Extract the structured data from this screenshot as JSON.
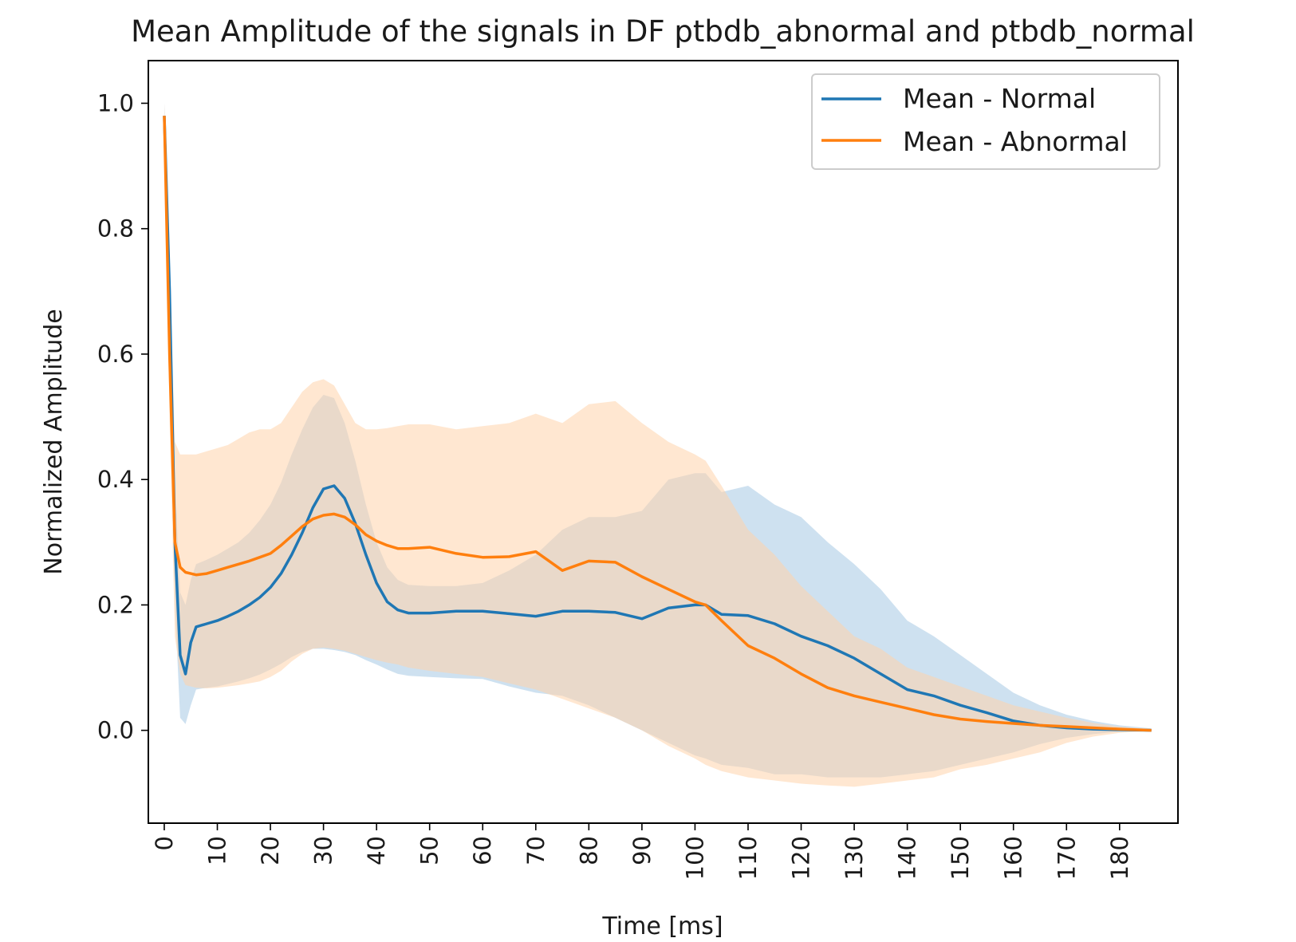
{
  "chart_data": {
    "type": "line",
    "title": "Mean Amplitude of the signals in DF ptbdb_abnormal and ptbdb_normal",
    "xlabel": "Time [ms]",
    "ylabel": "Normalized Amplitude",
    "xlim": [
      -3,
      191
    ],
    "ylim": [
      -0.148,
      1.068
    ],
    "xticks": [
      0,
      10,
      20,
      30,
      40,
      50,
      60,
      70,
      80,
      90,
      100,
      110,
      120,
      130,
      140,
      150,
      160,
      170,
      180
    ],
    "xtick_labels": [
      "0",
      "10",
      "20",
      "30",
      "40",
      "50",
      "60",
      "70",
      "80",
      "90",
      "100",
      "110",
      "120",
      "130",
      "140",
      "150",
      "160",
      "170",
      "180"
    ],
    "yticks": [
      0.0,
      0.2,
      0.4,
      0.6,
      0.8,
      1.0
    ],
    "ytick_labels": [
      "0.0",
      "0.2",
      "0.4",
      "0.6",
      "0.8",
      "1.0"
    ],
    "grid": false,
    "legend_position": "top-right",
    "series": [
      {
        "name": "Mean - Normal",
        "color": "#1f77b4",
        "band_color": "#aecde6",
        "x": [
          0,
          1,
          2,
          3,
          4,
          5,
          6,
          8,
          10,
          12,
          14,
          16,
          18,
          20,
          22,
          24,
          26,
          28,
          30,
          32,
          34,
          36,
          38,
          40,
          42,
          44,
          46,
          50,
          55,
          60,
          65,
          70,
          75,
          80,
          85,
          90,
          95,
          100,
          102,
          105,
          110,
          115,
          120,
          125,
          130,
          135,
          140,
          145,
          150,
          155,
          160,
          165,
          170,
          175,
          180,
          186
        ],
        "y": [
          0.98,
          0.7,
          0.3,
          0.12,
          0.09,
          0.14,
          0.165,
          0.17,
          0.175,
          0.182,
          0.19,
          0.2,
          0.212,
          0.228,
          0.25,
          0.28,
          0.315,
          0.355,
          0.385,
          0.39,
          0.37,
          0.33,
          0.28,
          0.235,
          0.205,
          0.192,
          0.187,
          0.187,
          0.19,
          0.19,
          0.186,
          0.182,
          0.19,
          0.19,
          0.188,
          0.178,
          0.195,
          0.2,
          0.2,
          0.185,
          0.183,
          0.17,
          0.15,
          0.135,
          0.115,
          0.09,
          0.065,
          0.055,
          0.04,
          0.028,
          0.015,
          0.008,
          0.004,
          0.002,
          0.001,
          0.0
        ],
        "lower": [
          0.96,
          0.65,
          0.2,
          0.02,
          0.01,
          0.04,
          0.065,
          0.068,
          0.07,
          0.074,
          0.078,
          0.083,
          0.089,
          0.097,
          0.106,
          0.117,
          0.125,
          0.13,
          0.13,
          0.128,
          0.125,
          0.12,
          0.112,
          0.105,
          0.097,
          0.09,
          0.087,
          0.085,
          0.083,
          0.082,
          0.07,
          0.06,
          0.055,
          0.04,
          0.02,
          0.0,
          -0.02,
          -0.04,
          -0.045,
          -0.055,
          -0.06,
          -0.07,
          -0.07,
          -0.075,
          -0.075,
          -0.075,
          -0.07,
          -0.065,
          -0.055,
          -0.045,
          -0.035,
          -0.022,
          -0.012,
          -0.006,
          -0.002,
          -0.001
        ],
        "upper": [
          1.0,
          0.75,
          0.4,
          0.22,
          0.2,
          0.24,
          0.265,
          0.272,
          0.28,
          0.29,
          0.3,
          0.315,
          0.335,
          0.36,
          0.395,
          0.44,
          0.48,
          0.515,
          0.535,
          0.53,
          0.49,
          0.43,
          0.36,
          0.3,
          0.26,
          0.24,
          0.232,
          0.23,
          0.23,
          0.235,
          0.255,
          0.28,
          0.32,
          0.34,
          0.34,
          0.35,
          0.4,
          0.41,
          0.41,
          0.38,
          0.39,
          0.36,
          0.34,
          0.3,
          0.265,
          0.225,
          0.175,
          0.15,
          0.12,
          0.09,
          0.06,
          0.04,
          0.025,
          0.015,
          0.008,
          0.003
        ]
      },
      {
        "name": "Mean - Abnormal",
        "color": "#ff7f0e",
        "band_color": "#ffd4ac",
        "x": [
          0,
          1,
          2,
          3,
          4,
          5,
          6,
          8,
          10,
          12,
          14,
          16,
          18,
          20,
          22,
          24,
          26,
          28,
          30,
          32,
          34,
          36,
          38,
          40,
          42,
          44,
          46,
          50,
          55,
          60,
          65,
          70,
          75,
          80,
          85,
          90,
          95,
          100,
          102,
          105,
          110,
          115,
          120,
          125,
          130,
          135,
          140,
          145,
          150,
          155,
          160,
          165,
          170,
          175,
          180,
          186
        ],
        "y": [
          0.98,
          0.6,
          0.3,
          0.26,
          0.252,
          0.25,
          0.248,
          0.25,
          0.255,
          0.26,
          0.265,
          0.27,
          0.276,
          0.282,
          0.295,
          0.31,
          0.325,
          0.337,
          0.343,
          0.345,
          0.34,
          0.328,
          0.312,
          0.302,
          0.295,
          0.29,
          0.29,
          0.292,
          0.282,
          0.276,
          0.277,
          0.285,
          0.255,
          0.27,
          0.268,
          0.245,
          0.225,
          0.205,
          0.2,
          0.175,
          0.135,
          0.115,
          0.09,
          0.068,
          0.055,
          0.045,
          0.035,
          0.025,
          0.018,
          0.014,
          0.011,
          0.008,
          0.006,
          0.004,
          0.002,
          0.0
        ],
        "lower": [
          0.96,
          0.5,
          0.15,
          0.09,
          0.072,
          0.07,
          0.068,
          0.067,
          0.068,
          0.07,
          0.072,
          0.075,
          0.078,
          0.085,
          0.095,
          0.11,
          0.122,
          0.13,
          0.132,
          0.13,
          0.127,
          0.122,
          0.117,
          0.112,
          0.108,
          0.105,
          0.1,
          0.095,
          0.09,
          0.085,
          0.075,
          0.065,
          0.05,
          0.035,
          0.02,
          0.0,
          -0.025,
          -0.045,
          -0.055,
          -0.065,
          -0.075,
          -0.08,
          -0.085,
          -0.088,
          -0.09,
          -0.085,
          -0.08,
          -0.075,
          -0.062,
          -0.055,
          -0.045,
          -0.035,
          -0.02,
          -0.01,
          -0.004,
          -0.001
        ],
        "upper": [
          1.0,
          0.72,
          0.46,
          0.44,
          0.44,
          0.44,
          0.44,
          0.445,
          0.45,
          0.455,
          0.465,
          0.475,
          0.48,
          0.48,
          0.49,
          0.515,
          0.54,
          0.555,
          0.56,
          0.55,
          0.52,
          0.49,
          0.48,
          0.48,
          0.482,
          0.485,
          0.488,
          0.488,
          0.48,
          0.485,
          0.49,
          0.505,
          0.49,
          0.52,
          0.525,
          0.49,
          0.46,
          0.44,
          0.43,
          0.39,
          0.32,
          0.28,
          0.23,
          0.19,
          0.15,
          0.13,
          0.1,
          0.085,
          0.07,
          0.055,
          0.04,
          0.03,
          0.02,
          0.012,
          0.006,
          0.002
        ]
      }
    ]
  }
}
